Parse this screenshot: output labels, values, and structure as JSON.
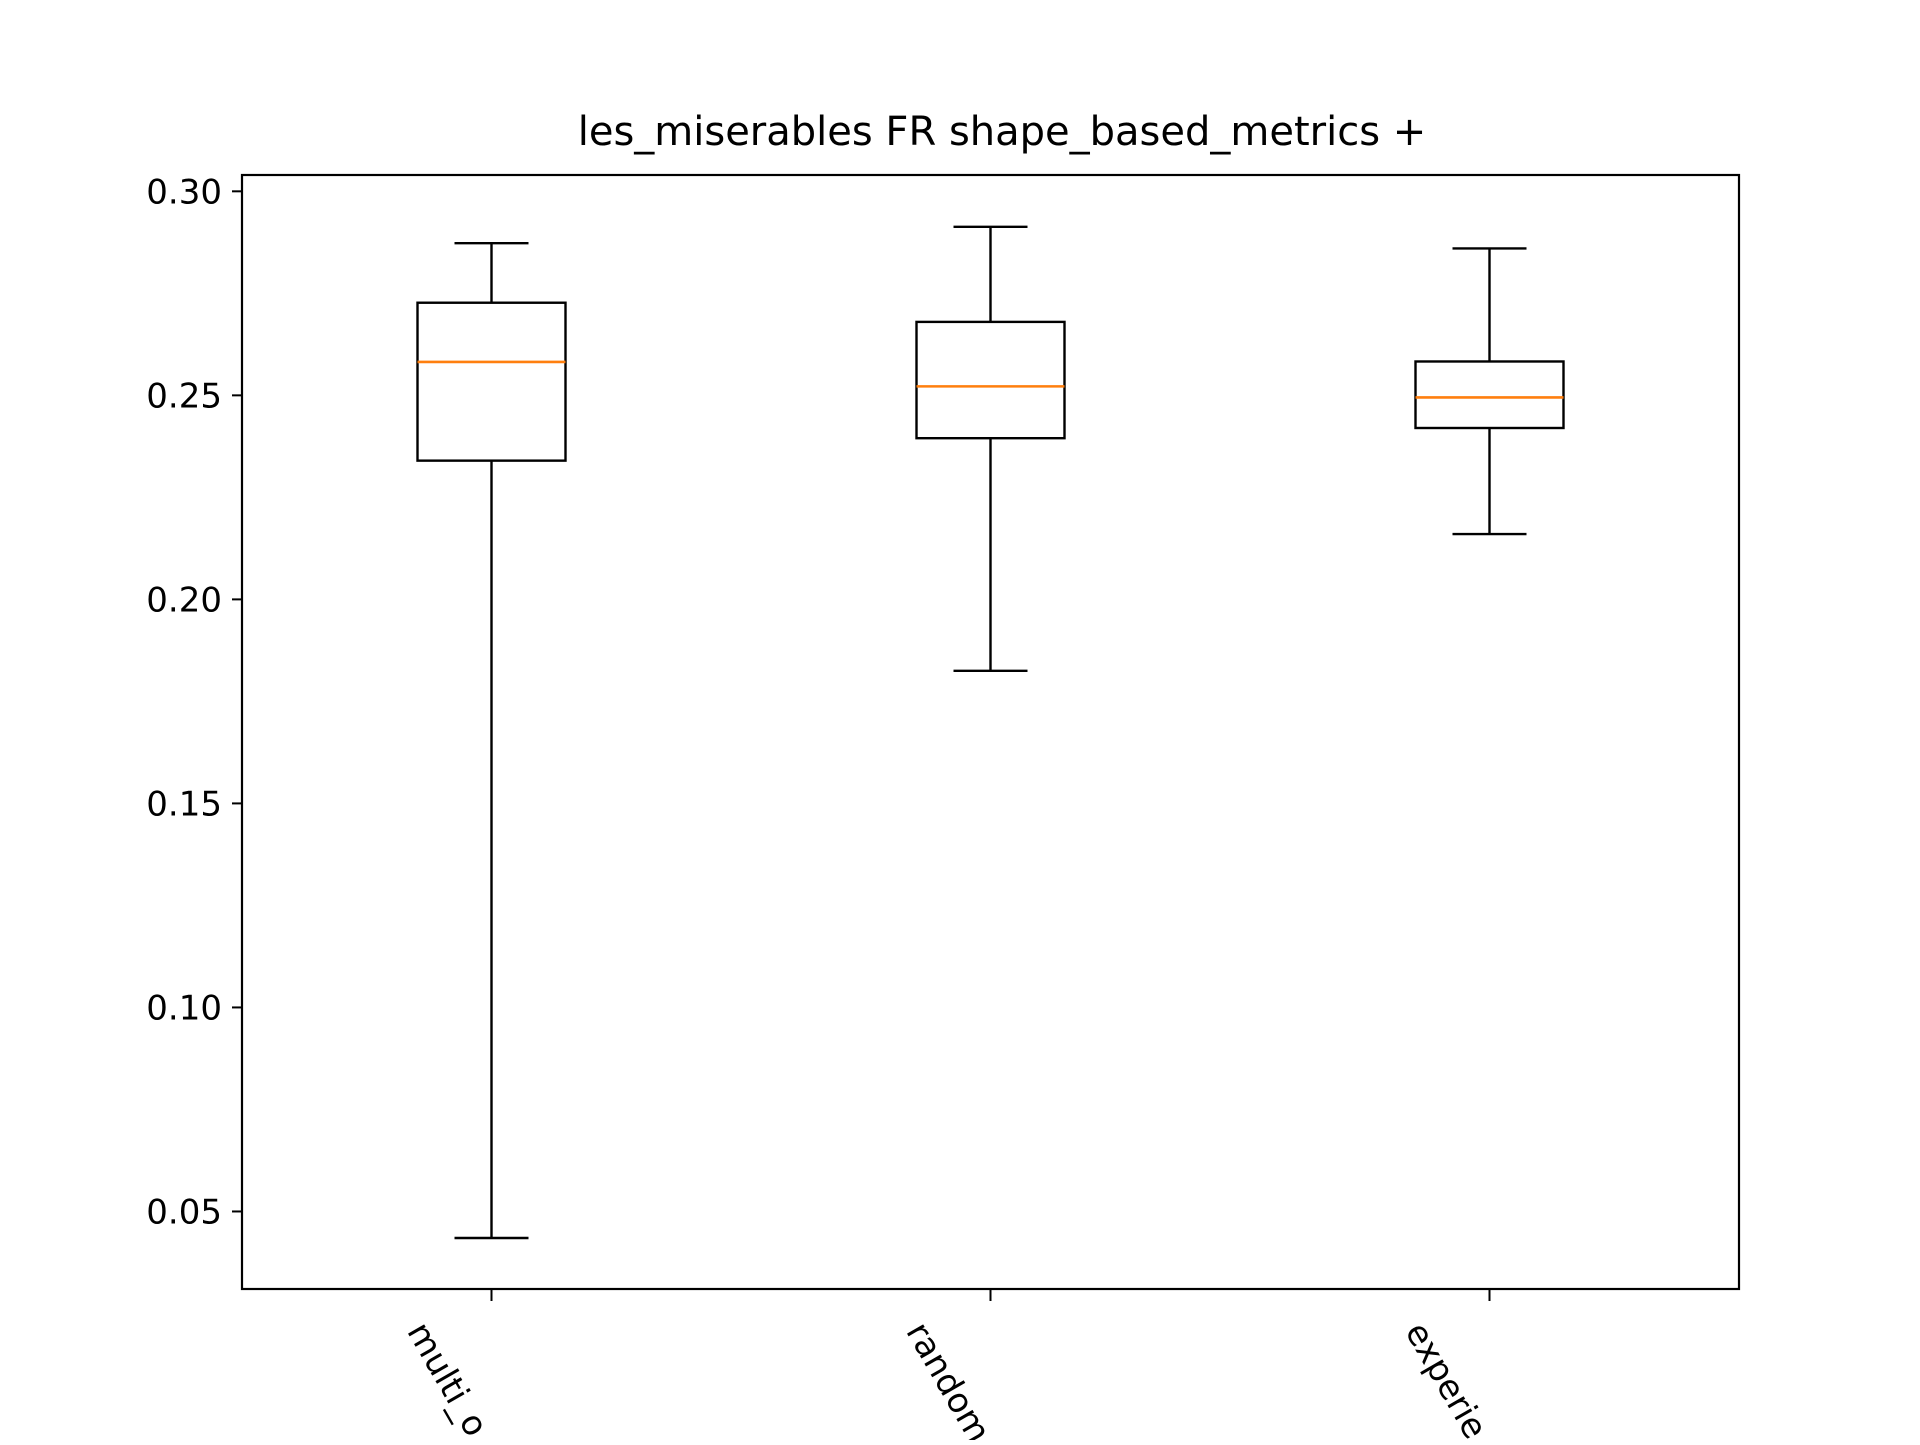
{
  "chart_data": {
    "type": "box",
    "title": "les_miserables FR shape_based_metrics +",
    "xlabel": "",
    "ylabel": "",
    "categories": [
      "multi_o",
      "random",
      "experie"
    ],
    "ylim": [
      0.031,
      0.304
    ],
    "yticks": [
      "0.05",
      "0.10",
      "0.15",
      "0.20",
      "0.25",
      "0.30"
    ],
    "grid": false,
    "colors": {
      "box": "#000000",
      "median": "#ff7f0e",
      "axes": "#000000"
    },
    "boxes": [
      {
        "category": "multi_o",
        "whisker_low": 0.0435,
        "q1": 0.234,
        "median": 0.2582,
        "q3": 0.2727,
        "whisker_high": 0.2873
      },
      {
        "category": "random",
        "whisker_low": 0.1825,
        "q1": 0.2395,
        "median": 0.2522,
        "q3": 0.268,
        "whisker_high": 0.2913
      },
      {
        "category": "experie",
        "whisker_low": 0.216,
        "q1": 0.242,
        "median": 0.2495,
        "q3": 0.2583,
        "whisker_high": 0.286
      }
    ]
  }
}
